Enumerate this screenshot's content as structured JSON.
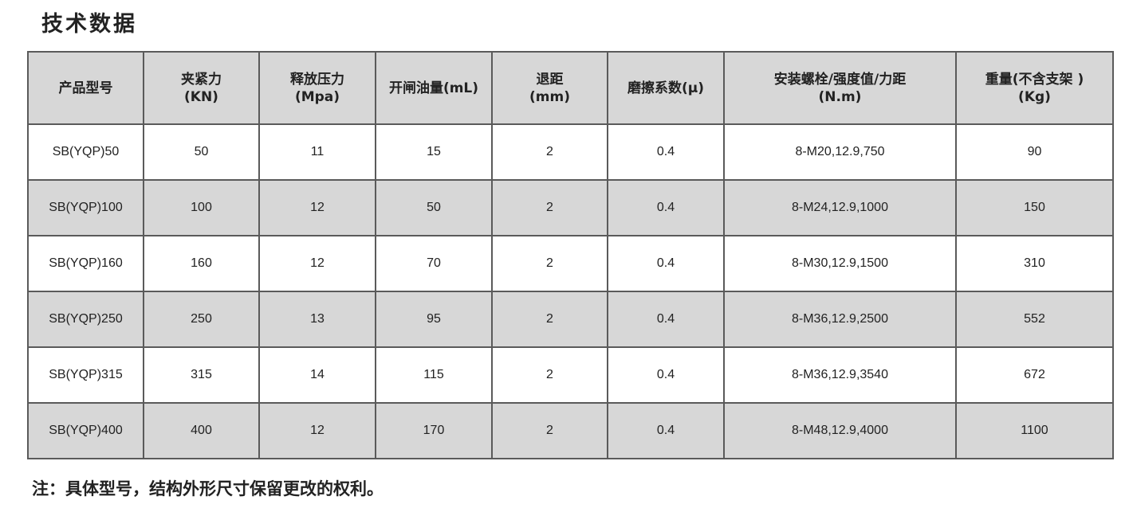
{
  "title": "技术数据",
  "table": {
    "headers": [
      [
        "产品型号",
        ""
      ],
      [
        "夹紧力",
        "(KN)"
      ],
      [
        "释放压力",
        "(Mpa)"
      ],
      [
        "开闸油量(mL)",
        ""
      ],
      [
        "退距",
        "(mm)"
      ],
      [
        "磨擦系数(μ)",
        ""
      ],
      [
        "安装螺栓/强度值/力距",
        "(N.m)"
      ],
      [
        "重量(不含支架 )",
        "(Kg)"
      ]
    ],
    "rows": [
      [
        "SB(YQP)50",
        "50",
        "11",
        "15",
        "2",
        "0.4",
        "8-M20,12.9,750",
        "90"
      ],
      [
        "SB(YQP)100",
        "100",
        "12",
        "50",
        "2",
        "0.4",
        "8-M24,12.9,1000",
        "150"
      ],
      [
        "SB(YQP)160",
        "160",
        "12",
        "70",
        "2",
        "0.4",
        "8-M30,12.9,1500",
        "310"
      ],
      [
        "SB(YQP)250",
        "250",
        "13",
        "95",
        "2",
        "0.4",
        "8-M36,12.9,2500",
        "552"
      ],
      [
        "SB(YQP)315",
        "315",
        "14",
        "115",
        "2",
        "0.4",
        "8-M36,12.9,3540",
        "672"
      ],
      [
        "SB(YQP)400",
        "400",
        "12",
        "170",
        "2",
        "0.4",
        "8-M48,12.9,4000",
        "1100"
      ]
    ]
  },
  "note": "注：具体型号，结构外形尺寸保留更改的权利。",
  "colors": {
    "header_bg": "#d7d7d7",
    "alt_row_bg": "#d7d7d7",
    "border": "#5a5a5a"
  }
}
